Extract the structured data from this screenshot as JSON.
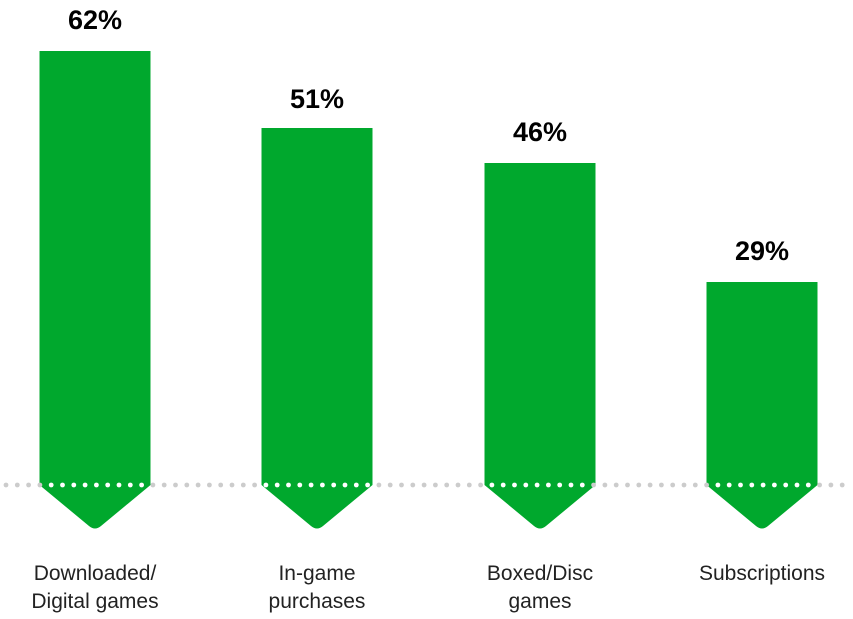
{
  "chart_data": {
    "type": "bar",
    "categories": [
      "Downloaded/\nDigital games",
      "In-game\npurchases",
      "Boxed/Disc\ngames",
      "Subscriptions"
    ],
    "values": [
      62,
      51,
      46,
      29
    ],
    "value_labels": [
      "62%",
      "51%",
      "46%",
      "29%"
    ],
    "title": "",
    "xlabel": "",
    "ylabel": "",
    "ylim": [
      0,
      62
    ],
    "grid": false,
    "legend": "none"
  },
  "colors": {
    "bar": "#00a82d",
    "baseline_dots": "#cccccc",
    "bar_dots": "#ffffff"
  }
}
